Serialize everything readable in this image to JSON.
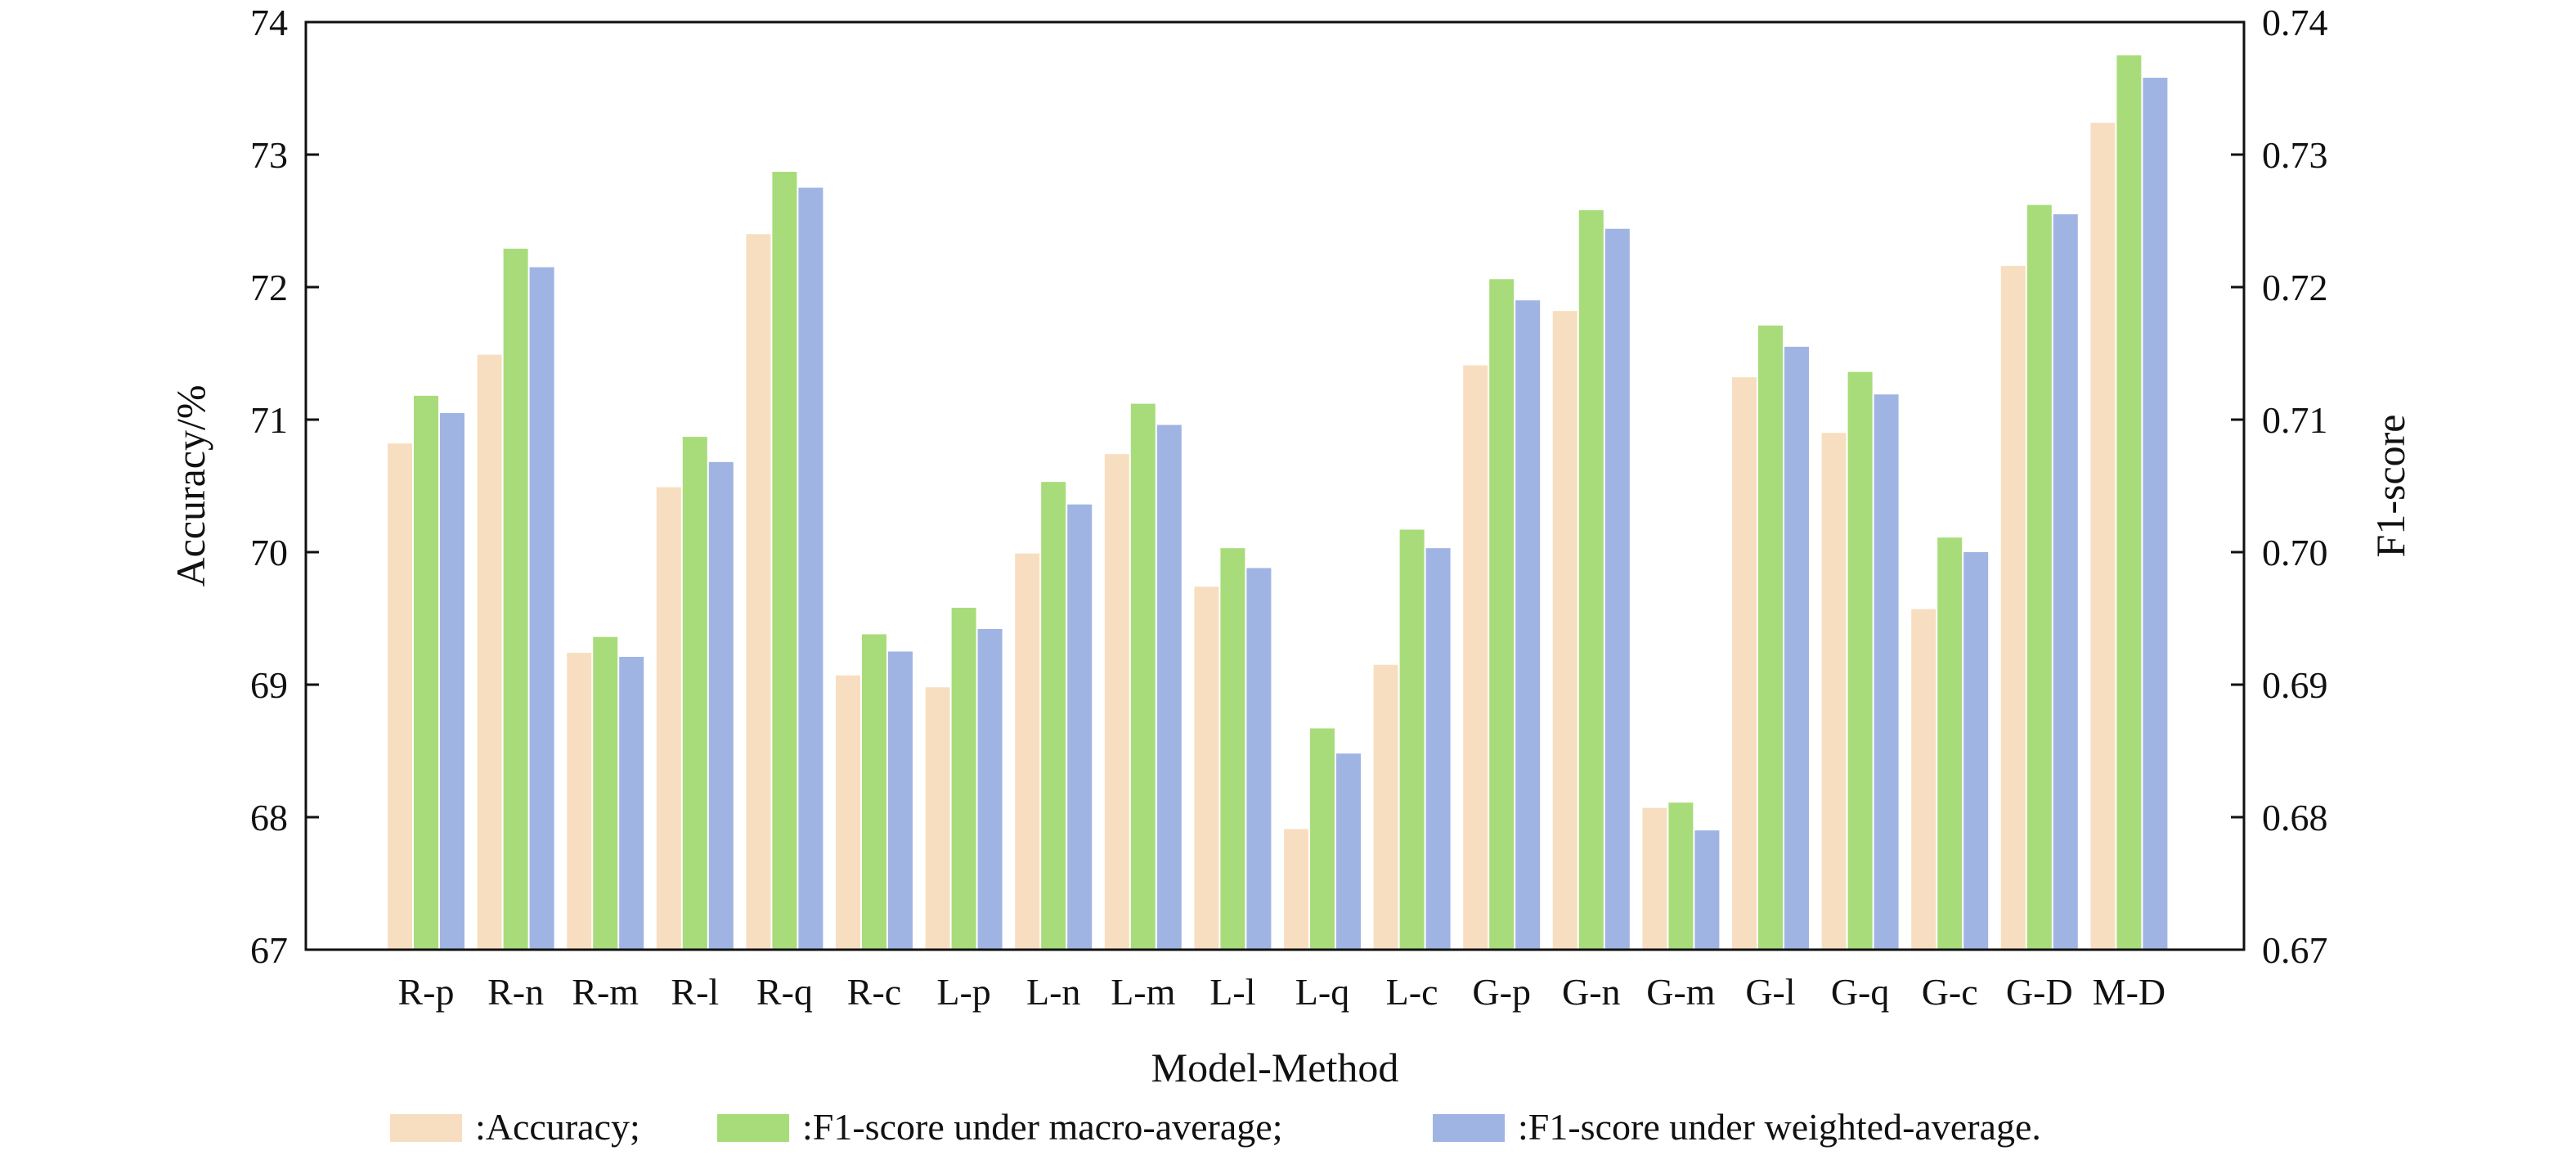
{
  "chart_data": {
    "type": "bar",
    "title": "",
    "xlabel": "Model-Method",
    "ylabel": "Accuracy/%",
    "ylabel_right": "F1-score",
    "ylim": [
      67,
      74
    ],
    "ylim_right": [
      0.67,
      0.74
    ],
    "yticks": [
      "67",
      "68",
      "69",
      "70",
      "71",
      "72",
      "73",
      "74"
    ],
    "yticks_right": [
      "0.67",
      "0.68",
      "0.69",
      "0.70",
      "0.71",
      "0.72",
      "0.73",
      "0.74"
    ],
    "categories": [
      "R-p",
      "R-n",
      "R-m",
      "R-l",
      "R-q",
      "R-c",
      "L-p",
      "L-n",
      "L-m",
      "L-l",
      "L-q",
      "L-c",
      "G-p",
      "G-n",
      "G-m",
      "G-l",
      "G-q",
      "G-c",
      "G-D",
      "M-D"
    ],
    "series": [
      {
        "name": ":Accuracy;",
        "axis": "left",
        "color": "#F8DEC0",
        "values": [
          70.82,
          71.49,
          69.24,
          70.49,
          72.4,
          69.07,
          68.98,
          69.99,
          70.74,
          69.74,
          67.91,
          69.15,
          71.41,
          71.82,
          68.07,
          71.32,
          70.9,
          69.57,
          72.16,
          73.24
        ]
      },
      {
        "name": ":F1-score under macro-average;",
        "axis": "right",
        "color": "#A8DC7A",
        "values": [
          0.7118,
          0.7229,
          0.6936,
          0.7087,
          0.7287,
          0.6938,
          0.6958,
          0.7053,
          0.7112,
          0.7003,
          0.6867,
          0.7017,
          0.7206,
          0.7258,
          0.6811,
          0.7171,
          0.7136,
          0.7011,
          0.7262,
          0.7375
        ]
      },
      {
        "name": ":F1-score under weighted-average.",
        "axis": "right",
        "color": "#A0B4E4",
        "values": [
          0.7105,
          0.7215,
          0.6921,
          0.7068,
          0.7275,
          0.6925,
          0.6942,
          0.7036,
          0.7096,
          0.6988,
          0.6848,
          0.7003,
          0.719,
          0.7244,
          0.679,
          0.7155,
          0.7119,
          0.7,
          0.7255,
          0.7358
        ]
      }
    ],
    "grid": false,
    "legend_position": "bottom"
  }
}
